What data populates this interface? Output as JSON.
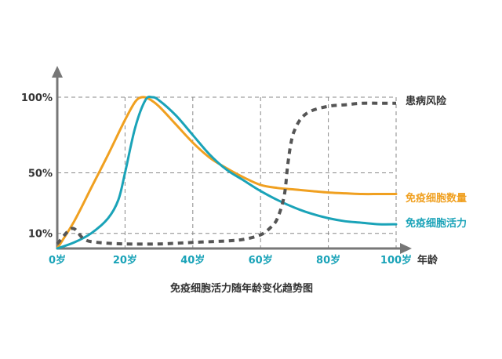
{
  "chart_data": {
    "type": "line",
    "title": "免疫细胞活力随年龄变化趋势图",
    "xlabel": "年龄",
    "ylabel": "",
    "x_tick_labels": [
      "0岁",
      "20岁",
      "40岁",
      "60岁",
      "80岁",
      "100岁"
    ],
    "y_tick_labels": [
      "10%",
      "50%",
      "100%"
    ],
    "x_ticks": [
      0,
      20,
      40,
      60,
      80,
      100
    ],
    "y_ticks": [
      10,
      50,
      100
    ],
    "xlim": [
      0,
      100
    ],
    "ylim": [
      0,
      100
    ],
    "grid": true,
    "colors": {
      "count": "#f0a020",
      "vitality": "#1aa3b8",
      "risk": "#555555",
      "axis": "#777777",
      "grid": "#888888",
      "x_labels": "#1aa3b8"
    },
    "series": [
      {
        "key": "count",
        "name": "免疫细胞数量",
        "style": "solid",
        "x": [
          0,
          5,
          10,
          15,
          20,
          23,
          25,
          27,
          30,
          35,
          40,
          45,
          50,
          55,
          60,
          65,
          70,
          75,
          80,
          85,
          90,
          95,
          100
        ],
        "values": [
          0,
          18,
          40,
          62,
          85,
          97,
          100,
          99,
          94,
          82,
          70,
          60,
          53,
          47,
          42,
          40,
          39,
          38,
          37,
          36.5,
          36,
          36,
          36
        ]
      },
      {
        "key": "vitality",
        "name": "免疫细胞活力",
        "style": "solid",
        "x": [
          0,
          5,
          10,
          15,
          18,
          20,
          23,
          26,
          28,
          30,
          35,
          40,
          45,
          50,
          55,
          60,
          65,
          70,
          75,
          80,
          85,
          90,
          95,
          100
        ],
        "values": [
          0,
          4,
          10,
          20,
          32,
          50,
          80,
          98,
          100,
          98,
          88,
          75,
          62,
          52,
          45,
          38,
          32,
          27,
          23,
          20,
          18,
          17,
          16,
          16
        ]
      },
      {
        "key": "risk",
        "name": "患病风险",
        "style": "dashed",
        "x": [
          0,
          3,
          5,
          8,
          12,
          20,
          30,
          40,
          50,
          55,
          60,
          63,
          65,
          67,
          68,
          69,
          70,
          72,
          75,
          80,
          85,
          90,
          95,
          100
        ],
        "values": [
          3,
          11,
          13,
          6,
          4,
          3,
          3,
          4,
          5,
          6,
          9,
          14,
          20,
          35,
          55,
          70,
          78,
          86,
          91,
          94,
          95,
          96,
          96,
          96
        ]
      }
    ]
  }
}
